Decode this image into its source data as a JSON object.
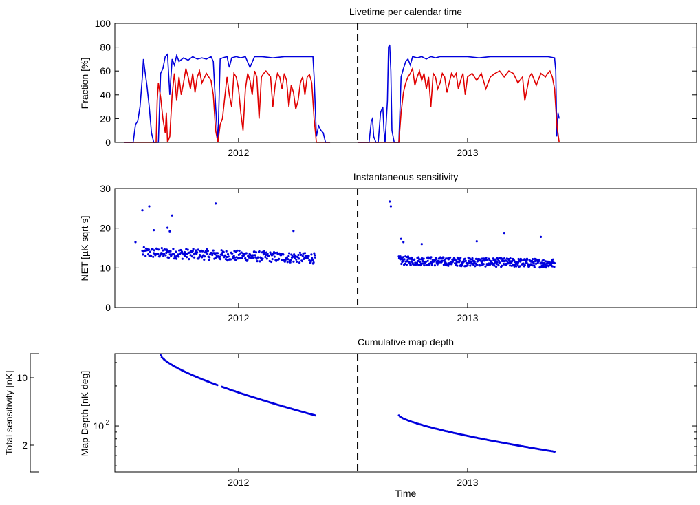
{
  "chart_data": [
    {
      "type": "line",
      "title": "Livetime per calendar time",
      "ylabel": "Fraction [%]",
      "xlabel": "",
      "x_range": [
        2011.46,
        2014.0
      ],
      "ylim": [
        0,
        100
      ],
      "yticks": [
        0,
        20,
        40,
        60,
        80,
        100
      ],
      "xticks": [
        {
          "value": 2012,
          "label": "2012"
        },
        {
          "value": 2013,
          "label": "2013"
        }
      ],
      "divider_x": 2012.52,
      "series": [
        {
          "name": "blue",
          "color": "#0000dd",
          "points": [
            [
              2011.5,
              0
            ],
            [
              2011.54,
              0
            ],
            [
              2011.55,
              15
            ],
            [
              2011.56,
              18
            ],
            [
              2011.57,
              30
            ],
            [
              2011.58,
              55
            ],
            [
              2011.585,
              70
            ],
            [
              2011.59,
              62
            ],
            [
              2011.6,
              48
            ],
            [
              2011.61,
              30
            ],
            [
              2011.62,
              8
            ],
            [
              2011.63,
              0
            ],
            [
              2011.65,
              0
            ],
            [
              2011.66,
              58
            ],
            [
              2011.67,
              62
            ],
            [
              2011.68,
              72
            ],
            [
              2011.69,
              74
            ],
            [
              2011.7,
              40
            ],
            [
              2011.71,
              70
            ],
            [
              2011.72,
              65
            ],
            [
              2011.73,
              73
            ],
            [
              2011.74,
              68
            ],
            [
              2011.76,
              71
            ],
            [
              2011.78,
              69
            ],
            [
              2011.8,
              72
            ],
            [
              2011.82,
              70
            ],
            [
              2011.84,
              71
            ],
            [
              2011.86,
              70
            ],
            [
              2011.88,
              72
            ],
            [
              2011.89,
              68
            ],
            [
              2011.9,
              30
            ],
            [
              2011.91,
              0
            ],
            [
              2011.92,
              70
            ],
            [
              2011.93,
              71
            ],
            [
              2011.95,
              72
            ],
            [
              2011.96,
              63
            ],
            [
              2011.97,
              71
            ],
            [
              2011.99,
              72
            ],
            [
              2012.01,
              71
            ],
            [
              2012.03,
              72
            ],
            [
              2012.05,
              63
            ],
            [
              2012.07,
              72
            ],
            [
              2012.1,
              72
            ],
            [
              2012.15,
              71
            ],
            [
              2012.2,
              72
            ],
            [
              2012.25,
              72
            ],
            [
              2012.3,
              72
            ],
            [
              2012.325,
              72
            ],
            [
              2012.33,
              55
            ],
            [
              2012.34,
              5
            ],
            [
              2012.35,
              14
            ],
            [
              2012.36,
              10
            ],
            [
              2012.37,
              8
            ],
            [
              2012.38,
              0
            ],
            [
              2012.4,
              0
            ]
          ]
        },
        {
          "name": "red",
          "color": "#e00000",
          "points": [
            [
              2011.5,
              0
            ],
            [
              2011.63,
              0
            ],
            [
              2011.64,
              0
            ],
            [
              2011.645,
              35
            ],
            [
              2011.65,
              50
            ],
            [
              2011.66,
              38
            ],
            [
              2011.67,
              20
            ],
            [
              2011.68,
              8
            ],
            [
              2011.685,
              25
            ],
            [
              2011.69,
              0
            ],
            [
              2011.7,
              5
            ],
            [
              2011.71,
              40
            ],
            [
              2011.72,
              58
            ],
            [
              2011.73,
              35
            ],
            [
              2011.74,
              55
            ],
            [
              2011.75,
              40
            ],
            [
              2011.76,
              50
            ],
            [
              2011.77,
              62
            ],
            [
              2011.78,
              55
            ],
            [
              2011.79,
              45
            ],
            [
              2011.8,
              58
            ],
            [
              2011.81,
              42
            ],
            [
              2011.82,
              55
            ],
            [
              2011.83,
              60
            ],
            [
              2011.84,
              50
            ],
            [
              2011.86,
              58
            ],
            [
              2011.88,
              52
            ],
            [
              2011.89,
              40
            ],
            [
              2011.9,
              10
            ],
            [
              2011.91,
              0
            ],
            [
              2011.92,
              15
            ],
            [
              2011.93,
              20
            ],
            [
              2011.94,
              38
            ],
            [
              2011.95,
              55
            ],
            [
              2011.96,
              40
            ],
            [
              2011.97,
              30
            ],
            [
              2011.98,
              58
            ],
            [
              2011.99,
              55
            ],
            [
              2012.0,
              45
            ],
            [
              2012.01,
              25
            ],
            [
              2012.02,
              10
            ],
            [
              2012.03,
              45
            ],
            [
              2012.04,
              58
            ],
            [
              2012.05,
              52
            ],
            [
              2012.06,
              40
            ],
            [
              2012.07,
              60
            ],
            [
              2012.08,
              55
            ],
            [
              2012.09,
              20
            ],
            [
              2012.1,
              55
            ],
            [
              2012.11,
              58
            ],
            [
              2012.12,
              60
            ],
            [
              2012.14,
              55
            ],
            [
              2012.15,
              30
            ],
            [
              2012.16,
              48
            ],
            [
              2012.17,
              58
            ],
            [
              2012.18,
              55
            ],
            [
              2012.19,
              45
            ],
            [
              2012.2,
              58
            ],
            [
              2012.21,
              52
            ],
            [
              2012.22,
              30
            ],
            [
              2012.23,
              48
            ],
            [
              2012.24,
              42
            ],
            [
              2012.25,
              28
            ],
            [
              2012.26,
              35
            ],
            [
              2012.27,
              50
            ],
            [
              2012.28,
              55
            ],
            [
              2012.29,
              40
            ],
            [
              2012.3,
              55
            ],
            [
              2012.31,
              57
            ],
            [
              2012.32,
              50
            ],
            [
              2012.33,
              20
            ],
            [
              2012.34,
              0
            ],
            [
              2012.4,
              0
            ]
          ]
        },
        {
          "name": "blue-2013",
          "color": "#0000dd",
          "points": [
            [
              2012.52,
              0
            ],
            [
              2012.57,
              0
            ],
            [
              2012.58,
              18
            ],
            [
              2012.585,
              20
            ],
            [
              2012.59,
              5
            ],
            [
              2012.6,
              0
            ],
            [
              2012.61,
              0
            ],
            [
              2012.62,
              25
            ],
            [
              2012.63,
              30
            ],
            [
              2012.635,
              10
            ],
            [
              2012.64,
              0
            ],
            [
              2012.65,
              35
            ],
            [
              2012.655,
              80
            ],
            [
              2012.66,
              82
            ],
            [
              2012.665,
              60
            ],
            [
              2012.67,
              10
            ],
            [
              2012.68,
              0
            ],
            [
              2012.7,
              0
            ],
            [
              2012.71,
              55
            ],
            [
              2012.72,
              62
            ],
            [
              2012.73,
              68
            ],
            [
              2012.74,
              70
            ],
            [
              2012.75,
              65
            ],
            [
              2012.76,
              72
            ],
            [
              2012.78,
              71
            ],
            [
              2012.8,
              72
            ],
            [
              2012.82,
              70
            ],
            [
              2012.84,
              72
            ],
            [
              2012.86,
              71
            ],
            [
              2012.88,
              72
            ],
            [
              2012.9,
              72
            ],
            [
              2012.95,
              72
            ],
            [
              2013.0,
              72
            ],
            [
              2013.05,
              71
            ],
            [
              2013.1,
              72
            ],
            [
              2013.15,
              72
            ],
            [
              2013.2,
              72
            ],
            [
              2013.25,
              72
            ],
            [
              2013.3,
              72
            ],
            [
              2013.35,
              72
            ],
            [
              2013.38,
              71
            ],
            [
              2013.385,
              60
            ],
            [
              2013.39,
              5
            ],
            [
              2013.395,
              25
            ],
            [
              2013.4,
              20
            ]
          ]
        },
        {
          "name": "red-2013",
          "color": "#e00000",
          "points": [
            [
              2012.52,
              0
            ],
            [
              2012.7,
              0
            ],
            [
              2012.71,
              25
            ],
            [
              2012.72,
              42
            ],
            [
              2012.73,
              50
            ],
            [
              2012.74,
              55
            ],
            [
              2012.75,
              58
            ],
            [
              2012.76,
              62
            ],
            [
              2012.77,
              48
            ],
            [
              2012.78,
              55
            ],
            [
              2012.79,
              60
            ],
            [
              2012.8,
              52
            ],
            [
              2012.81,
              58
            ],
            [
              2012.82,
              45
            ],
            [
              2012.83,
              55
            ],
            [
              2012.84,
              30
            ],
            [
              2012.85,
              58
            ],
            [
              2012.86,
              55
            ],
            [
              2012.87,
              45
            ],
            [
              2012.88,
              50
            ],
            [
              2012.89,
              58
            ],
            [
              2012.9,
              55
            ],
            [
              2012.91,
              42
            ],
            [
              2012.92,
              50
            ],
            [
              2012.93,
              58
            ],
            [
              2012.94,
              55
            ],
            [
              2012.95,
              58
            ],
            [
              2012.96,
              45
            ],
            [
              2012.97,
              52
            ],
            [
              2012.98,
              58
            ],
            [
              2012.99,
              40
            ],
            [
              2013.0,
              55
            ],
            [
              2013.02,
              58
            ],
            [
              2013.04,
              52
            ],
            [
              2013.06,
              58
            ],
            [
              2013.08,
              45
            ],
            [
              2013.1,
              55
            ],
            [
              2013.12,
              58
            ],
            [
              2013.14,
              60
            ],
            [
              2013.16,
              55
            ],
            [
              2013.18,
              60
            ],
            [
              2013.2,
              58
            ],
            [
              2013.22,
              50
            ],
            [
              2013.24,
              55
            ],
            [
              2013.25,
              35
            ],
            [
              2013.26,
              45
            ],
            [
              2013.27,
              55
            ],
            [
              2013.28,
              58
            ],
            [
              2013.3,
              48
            ],
            [
              2013.32,
              58
            ],
            [
              2013.34,
              55
            ],
            [
              2013.35,
              58
            ],
            [
              2013.36,
              60
            ],
            [
              2013.37,
              55
            ],
            [
              2013.38,
              45
            ],
            [
              2013.39,
              15
            ],
            [
              2013.4,
              0
            ]
          ]
        }
      ]
    },
    {
      "type": "scatter",
      "title": "Instantaneous sensitivity",
      "ylabel": "NET [µK sqrt s]",
      "xlabel": "",
      "ylim": [
        0,
        30
      ],
      "yticks": [
        0,
        10,
        20,
        30
      ],
      "xticks": [
        {
          "value": 2012,
          "label": "2012"
        },
        {
          "value": 2013,
          "label": "2013"
        }
      ],
      "color": "#0000dd",
      "seasons": [
        {
          "start": 2011.58,
          "end": 2012.335,
          "base_start": 13.5,
          "base_end": 12.0,
          "spread": 1.2,
          "n": 320
        },
        {
          "start": 2012.7,
          "end": 2013.38,
          "base_start": 11.5,
          "base_end": 10.8,
          "spread": 1.0,
          "n": 420
        }
      ],
      "outliers": [
        [
          2011.55,
          16.5
        ],
        [
          2011.58,
          24.5
        ],
        [
          2011.61,
          25.5
        ],
        [
          2011.71,
          23.2
        ],
        [
          2011.9,
          26.2
        ],
        [
          2012.24,
          19.3
        ],
        [
          2012.66,
          26.7
        ],
        [
          2012.665,
          25.5
        ],
        [
          2012.8,
          16.0
        ],
        [
          2013.04,
          16.7
        ],
        [
          2013.16,
          18.8
        ],
        [
          2013.32,
          17.8
        ],
        [
          2011.63,
          19.5
        ],
        [
          2011.69,
          20.1
        ],
        [
          2011.7,
          19.2
        ],
        [
          2012.71,
          17.3
        ],
        [
          2012.72,
          16.5
        ]
      ]
    },
    {
      "type": "scatter",
      "title": "Cumulative map depth",
      "ylabel": "Map Depth [nK deg]",
      "xlabel": "Time",
      "yscale": "log",
      "ylim": [
        45,
        350
      ],
      "ytick_label": "10",
      "ytick_exponent": "2",
      "ytick_value": 100,
      "xticks": [
        {
          "value": 2012,
          "label": "2012"
        },
        {
          "value": 2013,
          "label": "2013"
        }
      ],
      "color": "#0000dd",
      "seasons": [
        {
          "start": 2011.66,
          "end": 2012.335,
          "depth_start": 340,
          "depth_end": 120,
          "gap": [
            2011.91,
            2011.925
          ]
        },
        {
          "start": 2012.7,
          "end": 2013.38,
          "depth_start": 120,
          "depth_end": 64
        }
      ],
      "secondary_axis": {
        "label": "Total sensitivity [nK]",
        "ticks": [
          {
            "value": 10,
            "label": "10"
          },
          {
            "value": 2,
            "label": "2"
          }
        ]
      }
    }
  ]
}
